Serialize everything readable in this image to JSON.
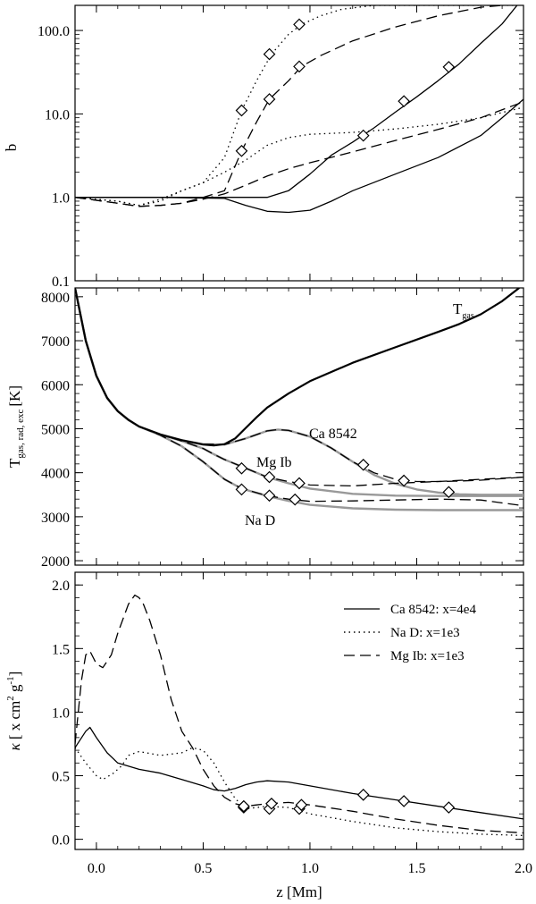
{
  "chart_data": [
    {
      "type": "line",
      "panel": "top",
      "ylabel": "b",
      "yscale": "log",
      "xlim": [
        -0.1,
        2.0
      ],
      "ylim": [
        0.1,
        200
      ],
      "yticks": [
        0.1,
        1.0,
        10.0,
        100.0
      ],
      "ytick_labels": [
        "0.1",
        "1.0",
        "10.0",
        "100.0"
      ],
      "series": [
        {
          "name": "Ca 8542 upper",
          "style": "solid",
          "color": "#000000",
          "x": [
            -0.1,
            0.3,
            0.6,
            0.8,
            0.9,
            1.0,
            1.1,
            1.2,
            1.3,
            1.4,
            1.5,
            1.6,
            1.7,
            1.8,
            1.9,
            1.97
          ],
          "y": [
            1.0,
            1.0,
            1.0,
            1.0,
            1.2,
            1.9,
            3.2,
            4.6,
            6.8,
            10.5,
            16,
            25,
            40,
            70,
            120,
            200
          ],
          "markers": [
            [
              1.25,
              5.5
            ],
            [
              1.44,
              14.2
            ],
            [
              1.65,
              36.5
            ]
          ]
        },
        {
          "name": "Ca 8542 lower",
          "style": "solid",
          "color": "#000000",
          "x": [
            -0.1,
            0.3,
            0.6,
            0.7,
            0.8,
            0.9,
            1.0,
            1.1,
            1.2,
            1.4,
            1.6,
            1.8,
            1.9,
            2.0
          ],
          "y": [
            1.0,
            1.0,
            0.97,
            0.8,
            0.68,
            0.66,
            0.7,
            0.9,
            1.2,
            1.9,
            3.0,
            5.5,
            9.0,
            15.0
          ],
          "markers": []
        },
        {
          "name": "Na D upper",
          "style": "dotted",
          "color": "#000000",
          "x": [
            -0.1,
            0.1,
            0.2,
            0.3,
            0.4,
            0.5,
            0.6,
            0.68,
            0.75,
            0.82,
            0.9,
            0.96,
            1.05,
            1.15,
            1.3,
            1.5,
            1.97
          ],
          "y": [
            1.0,
            0.9,
            0.8,
            0.9,
            1.2,
            1.5,
            3.0,
            11.0,
            25,
            52,
            90,
            118,
            150,
            180,
            200,
            200,
            200
          ],
          "markers": [
            [
              0.68,
              11.0
            ],
            [
              0.81,
              52.0
            ],
            [
              0.95,
              118.0
            ]
          ]
        },
        {
          "name": "Na D lower",
          "style": "dotted",
          "color": "#000000",
          "x": [
            -0.1,
            0.1,
            0.2,
            0.3,
            0.4,
            0.5,
            0.6,
            0.7,
            0.8,
            0.9,
            1.0,
            1.2,
            1.4,
            1.6,
            1.8,
            2.0
          ],
          "y": [
            1.0,
            0.9,
            0.8,
            0.95,
            1.2,
            1.5,
            2.0,
            2.8,
            4.2,
            5.2,
            5.7,
            6.0,
            6.6,
            7.5,
            9.0,
            12.0
          ],
          "markers": []
        },
        {
          "name": "Mg Ib upper",
          "style": "dashed",
          "color": "#000000",
          "x": [
            -0.1,
            0.1,
            0.2,
            0.3,
            0.4,
            0.5,
            0.6,
            0.68,
            0.75,
            0.81,
            0.9,
            0.96,
            1.05,
            1.2,
            1.4,
            1.6,
            1.8,
            1.9
          ],
          "y": [
            1.0,
            0.85,
            0.78,
            0.8,
            0.85,
            1.0,
            1.2,
            3.6,
            8.0,
            15,
            25,
            37,
            50,
            75,
            110,
            150,
            190,
            200
          ],
          "markers": [
            [
              0.68,
              3.6
            ],
            [
              0.81,
              15.0
            ],
            [
              0.95,
              37.0
            ]
          ]
        },
        {
          "name": "Mg Ib lower",
          "style": "dashed",
          "color": "#000000",
          "x": [
            -0.1,
            0.1,
            0.2,
            0.3,
            0.4,
            0.5,
            0.6,
            0.7,
            0.8,
            0.9,
            1.0,
            1.2,
            1.4,
            1.6,
            1.8,
            2.0
          ],
          "y": [
            1.0,
            0.85,
            0.78,
            0.8,
            0.85,
            0.95,
            1.1,
            1.4,
            1.8,
            2.2,
            2.6,
            3.5,
            4.8,
            6.5,
            9.0,
            14.0
          ],
          "markers": []
        }
      ]
    },
    {
      "type": "line",
      "panel": "middle",
      "ylabel": "T",
      "ylabel_sub": "gas, rad, exc",
      "ylabel_unit": "[K]",
      "xlim": [
        -0.1,
        2.0
      ],
      "ylim": [
        1900,
        8200
      ],
      "yticks": [
        2000,
        3000,
        4000,
        5000,
        6000,
        7000,
        8000
      ],
      "ytick_labels": [
        "2000",
        "3000",
        "4000",
        "5000",
        "6000",
        "7000",
        "8000"
      ],
      "annotations": [
        {
          "text": "T",
          "sub": "gas",
          "x": 1.32,
          "y": 7350
        },
        {
          "text": "Ca 8542",
          "x": 0.99,
          "y": 4900
        },
        {
          "text": "Mg Ib",
          "x": 0.68,
          "y": 4550
        },
        {
          "text": "Na D",
          "x": 0.72,
          "y": 2940
        }
      ],
      "series": [
        {
          "name": "T gas",
          "style": "solid",
          "color": "#000000",
          "width": 2.2,
          "x": [
            -0.1,
            -0.05,
            0.0,
            0.05,
            0.1,
            0.15,
            0.2,
            0.3,
            0.4,
            0.5,
            0.55,
            0.6,
            0.65,
            0.7,
            0.75,
            0.8,
            0.9,
            1.0,
            1.2,
            1.4,
            1.6,
            1.7,
            1.8,
            1.9,
            1.98
          ],
          "y": [
            8200,
            7000,
            6200,
            5700,
            5400,
            5200,
            5050,
            4870,
            4740,
            4640,
            4620,
            4650,
            4780,
            5020,
            5260,
            5480,
            5800,
            6080,
            6500,
            6850,
            7200,
            7380,
            7600,
            7900,
            8200
          ],
          "markers": []
        },
        {
          "name": "Ca 8542 rad",
          "style": "dashed",
          "color": "#000000",
          "x": [
            -0.1,
            -0.05,
            0.0,
            0.05,
            0.1,
            0.15,
            0.2,
            0.3,
            0.4,
            0.5,
            0.6,
            0.7,
            0.8,
            0.85,
            0.9,
            1.0,
            1.1,
            1.2,
            1.3,
            1.4,
            1.5,
            1.6,
            1.7,
            1.8,
            2.0
          ],
          "y": [
            8200,
            7000,
            6200,
            5700,
            5400,
            5200,
            5050,
            4870,
            4740,
            4650,
            4640,
            4780,
            4950,
            4980,
            4960,
            4820,
            4560,
            4250,
            4000,
            3850,
            3800,
            3800,
            3810,
            3830,
            3900
          ],
          "markers": [
            [
              1.25,
              4180
            ],
            [
              1.44,
              3820
            ],
            [
              1.65,
              3560
            ]
          ]
        },
        {
          "name": "Ca 8542 exc",
          "style": "solid",
          "color": "#999999",
          "width": 2.4,
          "x": [
            -0.1,
            -0.05,
            0.0,
            0.05,
            0.1,
            0.15,
            0.2,
            0.3,
            0.4,
            0.5,
            0.6,
            0.7,
            0.8,
            0.85,
            0.9,
            1.0,
            1.1,
            1.2,
            1.3,
            1.4,
            1.5,
            1.6,
            1.7,
            1.8,
            2.0
          ],
          "y": [
            8200,
            7000,
            6200,
            5700,
            5400,
            5200,
            5050,
            4870,
            4740,
            4650,
            4640,
            4780,
            4950,
            4980,
            4960,
            4820,
            4560,
            4250,
            3950,
            3750,
            3620,
            3550,
            3510,
            3500,
            3500
          ],
          "markers": []
        },
        {
          "name": "Mg Ib rad",
          "style": "dashed",
          "color": "#000000",
          "x": [
            -0.1,
            -0.05,
            0.0,
            0.05,
            0.1,
            0.15,
            0.2,
            0.3,
            0.4,
            0.5,
            0.55,
            0.6,
            0.7,
            0.8,
            0.9,
            1.0,
            1.2,
            1.4,
            1.6,
            1.8,
            2.0
          ],
          "y": [
            8200,
            7000,
            6200,
            5700,
            5400,
            5200,
            5050,
            4870,
            4720,
            4550,
            4420,
            4300,
            4100,
            3900,
            3800,
            3720,
            3700,
            3760,
            3800,
            3850,
            3900
          ],
          "markers": [
            [
              0.68,
              4100
            ],
            [
              0.81,
              3900
            ],
            [
              0.95,
              3760
            ]
          ]
        },
        {
          "name": "Mg Ib exc",
          "style": "solid",
          "color": "#999999",
          "width": 2.4,
          "x": [
            -0.1,
            -0.05,
            0.0,
            0.05,
            0.1,
            0.15,
            0.2,
            0.3,
            0.4,
            0.5,
            0.55,
            0.6,
            0.7,
            0.8,
            0.9,
            1.0,
            1.2,
            1.4,
            1.6,
            1.8,
            2.0
          ],
          "y": [
            8200,
            7000,
            6200,
            5700,
            5400,
            5200,
            5050,
            4870,
            4720,
            4550,
            4420,
            4300,
            4100,
            3900,
            3760,
            3640,
            3520,
            3480,
            3470,
            3470,
            3470
          ],
          "markers": []
        },
        {
          "name": "Na D rad",
          "style": "dashed",
          "color": "#000000",
          "x": [
            -0.1,
            -0.05,
            0.0,
            0.05,
            0.1,
            0.15,
            0.2,
            0.3,
            0.4,
            0.5,
            0.6,
            0.68,
            0.8,
            0.9,
            1.0,
            1.2,
            1.4,
            1.6,
            1.8,
            2.0
          ],
          "y": [
            8200,
            7000,
            6200,
            5700,
            5400,
            5200,
            5050,
            4850,
            4600,
            4250,
            3850,
            3640,
            3480,
            3400,
            3350,
            3360,
            3380,
            3400,
            3380,
            3250
          ],
          "markers": [
            [
              0.68,
              3620
            ],
            [
              0.81,
              3480
            ],
            [
              0.93,
              3390
            ]
          ]
        },
        {
          "name": "Na D exc",
          "style": "solid",
          "color": "#999999",
          "width": 2.4,
          "x": [
            -0.1,
            -0.05,
            0.0,
            0.05,
            0.1,
            0.15,
            0.2,
            0.3,
            0.4,
            0.5,
            0.6,
            0.68,
            0.8,
            0.9,
            1.0,
            1.2,
            1.4,
            1.6,
            1.8,
            2.0
          ],
          "y": [
            8200,
            7000,
            6200,
            5700,
            5400,
            5200,
            5050,
            4850,
            4600,
            4250,
            3850,
            3640,
            3470,
            3360,
            3270,
            3190,
            3160,
            3150,
            3150,
            3150
          ],
          "markers": []
        }
      ]
    },
    {
      "type": "line",
      "panel": "bottom",
      "ylabel": "κ [ x cm² g⁻¹]",
      "ylabel_kappa": "κ",
      "ylabel_bracket": "[ x cm",
      "ylabel_exp1": "2",
      "ylabel_g": " g",
      "ylabel_exp2": "-1",
      "ylabel_close": "]",
      "xlabel": "z [Mm]",
      "xlim": [
        -0.1,
        2.0
      ],
      "ylim": [
        -0.08,
        2.1
      ],
      "yticks": [
        0.0,
        0.5,
        1.0,
        1.5,
        2.0
      ],
      "ytick_labels": [
        "0.0",
        "0.5",
        "1.0",
        "1.5",
        "2.0"
      ],
      "xticks": [
        0.0,
        0.5,
        1.0,
        1.5,
        2.0
      ],
      "xtick_labels": [
        "0.0",
        "0.5",
        "1.0",
        "1.5",
        "2.0"
      ],
      "legend": {
        "position": "top-right",
        "entries": [
          {
            "label": "Ca 8542: x=4e4",
            "style": "solid"
          },
          {
            "label": "Na D: x=1e3",
            "style": "dotted"
          },
          {
            "label": "Mg Ib: x=1e3",
            "style": "dashed"
          }
        ]
      },
      "series": [
        {
          "name": "Ca 8542: x=4e4",
          "style": "solid",
          "color": "#000000",
          "x": [
            -0.1,
            -0.05,
            -0.03,
            0.0,
            0.05,
            0.1,
            0.2,
            0.3,
            0.4,
            0.5,
            0.55,
            0.6,
            0.65,
            0.7,
            0.75,
            0.8,
            0.9,
            1.0,
            1.2,
            1.4,
            1.6,
            1.8,
            2.0
          ],
          "y": [
            0.72,
            0.85,
            0.88,
            0.8,
            0.68,
            0.6,
            0.55,
            0.52,
            0.47,
            0.42,
            0.39,
            0.38,
            0.4,
            0.43,
            0.45,
            0.46,
            0.45,
            0.42,
            0.36,
            0.31,
            0.26,
            0.21,
            0.16
          ],
          "markers": [
            [
              1.25,
              0.35
            ],
            [
              1.44,
              0.3
            ],
            [
              1.65,
              0.25
            ]
          ]
        },
        {
          "name": "Na D: x=1e3",
          "style": "dotted",
          "color": "#000000",
          "x": [
            -0.1,
            -0.05,
            0.0,
            0.03,
            0.08,
            0.12,
            0.15,
            0.2,
            0.3,
            0.4,
            0.45,
            0.5,
            0.55,
            0.6,
            0.65,
            0.7,
            0.8,
            0.9,
            1.0,
            1.2,
            1.4,
            1.6,
            1.8,
            2.0
          ],
          "y": [
            0.72,
            0.6,
            0.5,
            0.47,
            0.52,
            0.58,
            0.66,
            0.69,
            0.66,
            0.68,
            0.72,
            0.7,
            0.6,
            0.45,
            0.32,
            0.24,
            0.26,
            0.25,
            0.2,
            0.14,
            0.09,
            0.06,
            0.04,
            0.03
          ],
          "markers": [
            [
              0.69,
              0.25
            ],
            [
              0.81,
              0.24
            ],
            [
              0.95,
              0.24
            ]
          ]
        },
        {
          "name": "Mg Ib: x=1e3",
          "style": "dashed",
          "color": "#000000",
          "x": [
            -0.1,
            -0.07,
            -0.05,
            -0.03,
            0.0,
            0.03,
            0.07,
            0.1,
            0.15,
            0.18,
            0.2,
            0.22,
            0.25,
            0.3,
            0.35,
            0.4,
            0.45,
            0.5,
            0.55,
            0.6,
            0.65,
            0.7,
            0.75,
            0.8,
            0.9,
            1.0,
            1.2,
            1.4,
            1.6,
            1.8,
            2.0
          ],
          "y": [
            0.75,
            1.25,
            1.45,
            1.48,
            1.38,
            1.35,
            1.45,
            1.62,
            1.85,
            1.92,
            1.9,
            1.85,
            1.72,
            1.45,
            1.1,
            0.85,
            0.72,
            0.55,
            0.42,
            0.33,
            0.28,
            0.26,
            0.27,
            0.28,
            0.29,
            0.27,
            0.22,
            0.16,
            0.11,
            0.07,
            0.05
          ],
          "markers": [
            [
              0.69,
              0.26
            ],
            [
              0.82,
              0.28
            ],
            [
              0.96,
              0.27
            ]
          ]
        }
      ]
    }
  ]
}
